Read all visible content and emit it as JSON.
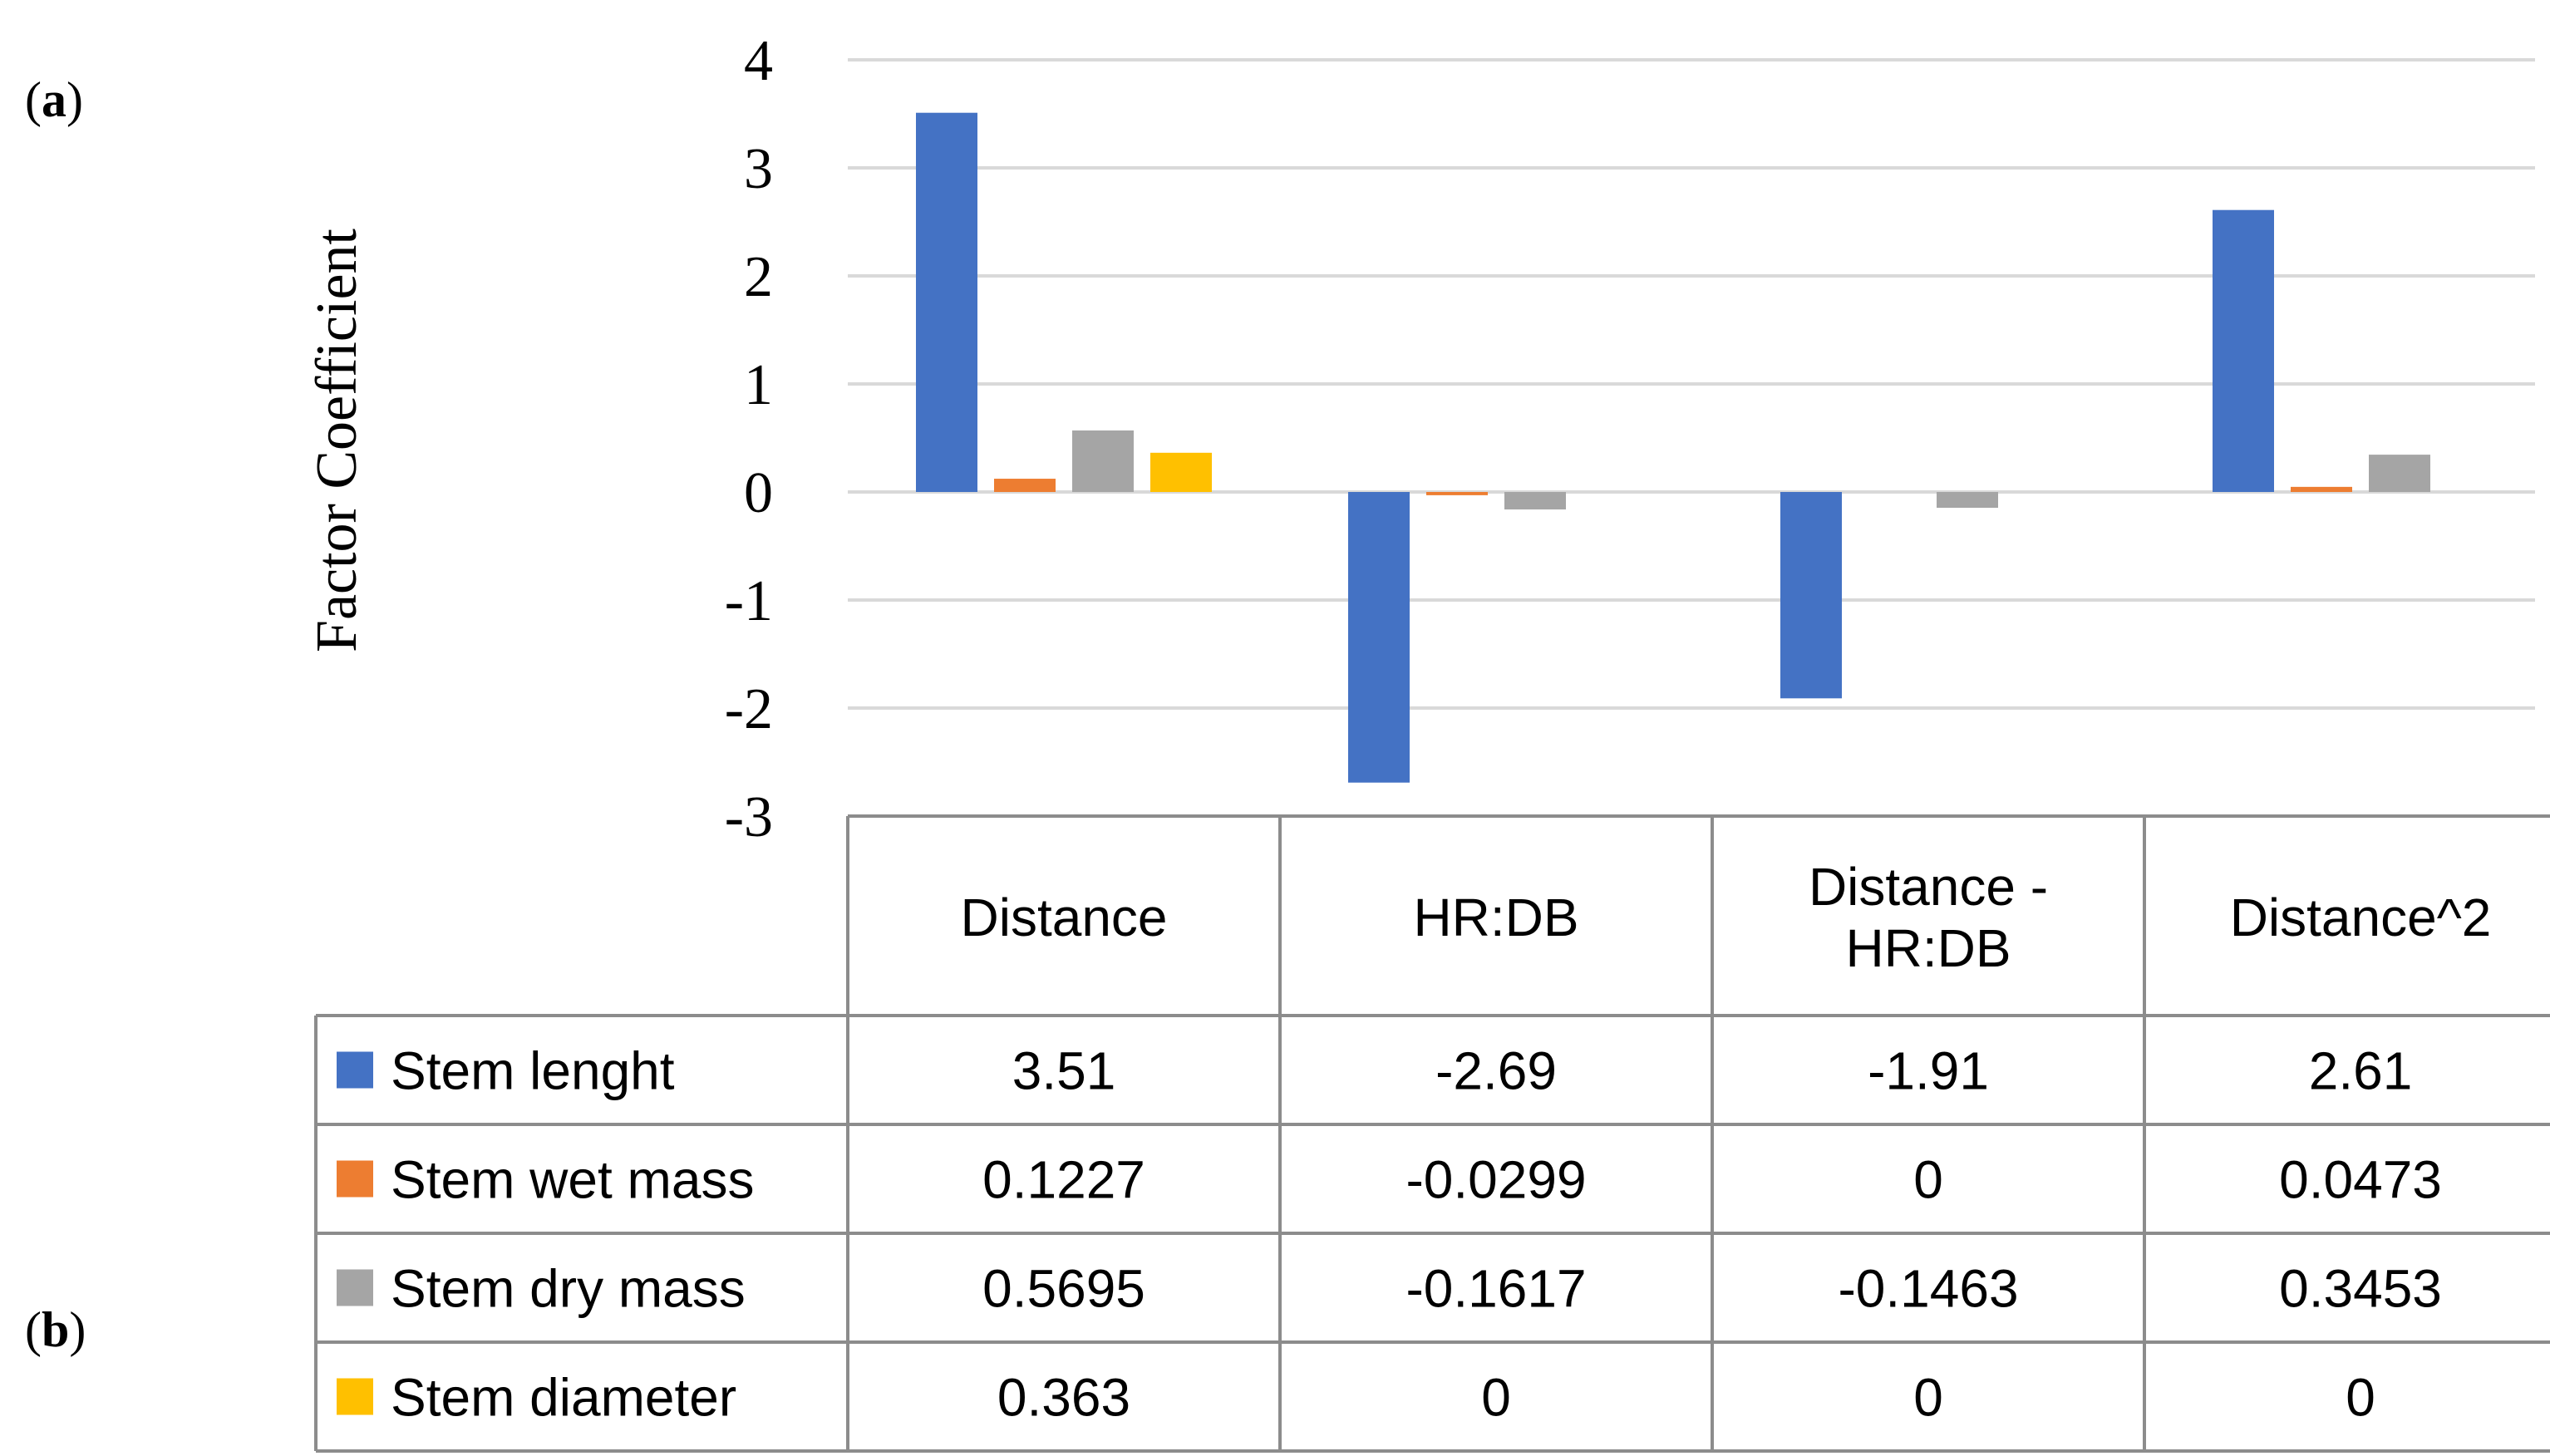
{
  "panel_labels": {
    "a": "a",
    "b": "b"
  },
  "chart_data": {
    "type": "bar",
    "ylabel": "Factor Coefficient",
    "ylim": [
      -3,
      4
    ],
    "yticks": [
      4,
      3,
      2,
      1,
      0,
      -1,
      -2,
      -3
    ],
    "ytick_labels": [
      "4",
      "3",
      "2",
      "1",
      "0",
      "-1",
      "-2",
      "-3"
    ],
    "grid": true,
    "categories": [
      [
        "Distance"
      ],
      [
        "HR:DB"
      ],
      [
        "Distance -",
        "HR:DB"
      ],
      [
        "Distance^2"
      ]
    ],
    "series": [
      {
        "name": "Stem lenght",
        "color": "#4472C4",
        "values": [
          3.51,
          -2.69,
          -1.91,
          2.61
        ],
        "labels": [
          "3.51",
          "-2.69",
          "-1.91",
          "2.61"
        ]
      },
      {
        "name": "Stem wet mass",
        "color": "#ED7D31",
        "values": [
          0.1227,
          -0.0299,
          0,
          0.0473
        ],
        "labels": [
          "0.1227",
          "-0.0299",
          "0",
          "0.0473"
        ]
      },
      {
        "name": "Stem dry mass",
        "color": "#A5A5A5",
        "values": [
          0.5695,
          -0.1617,
          -0.1463,
          0.3453
        ],
        "labels": [
          "0.5695",
          "-0.1617",
          "-0.1463",
          "0.3453"
        ]
      },
      {
        "name": "Stem diameter",
        "color": "#FFC000",
        "values": [
          0.363,
          0,
          0,
          0
        ],
        "labels": [
          "0.363",
          "0",
          "0",
          "0"
        ]
      }
    ]
  }
}
